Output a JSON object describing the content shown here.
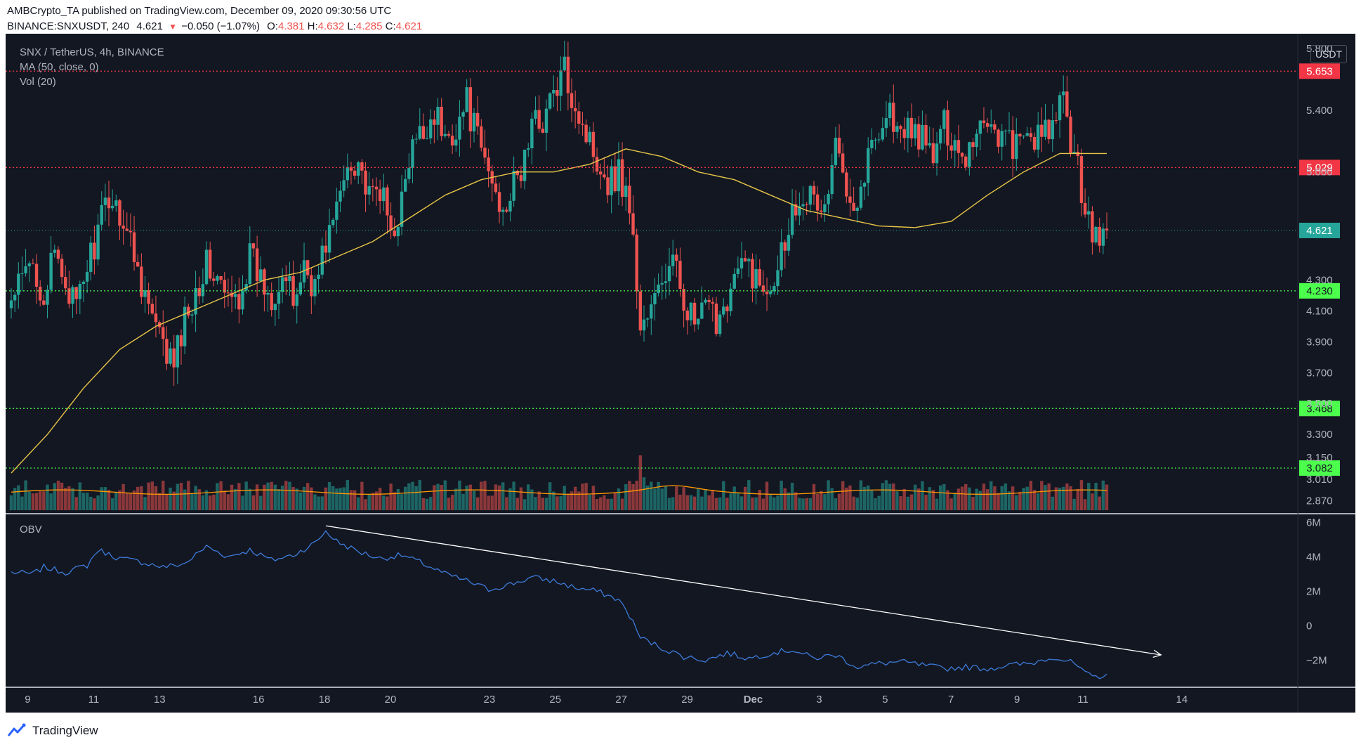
{
  "header": {
    "publisher": "AMBCrypto_TA published on TradingView.com, December 09, 2020 09:30:56 UTC",
    "symbol": "BINANCE:SNXUSDT, 240",
    "last": "4.621",
    "change": "−0.050 (−1.07%)",
    "o_label": "O:",
    "o_val": "4.381",
    "h_label": "H:",
    "h_val": "4.632",
    "l_label": "L:",
    "l_val": "4.285",
    "c_label": "C:",
    "c_val": "4.621"
  },
  "legend": {
    "pair": "SNX / TetherUS, 4h, BINANCE",
    "ma": "MA (50, close, 0)",
    "vol": "Vol (20)",
    "obv": "OBV"
  },
  "currency_button": "USDT",
  "footer": {
    "brand": "TradingView"
  },
  "colors": {
    "background": "#131722",
    "up": "#26a69a",
    "down": "#ef5350",
    "ma": "#e8c547",
    "vol_ma": "#ff9800",
    "obv": "#3d7bd9",
    "resistance": "#f23645",
    "support": "#4dff4d"
  },
  "chart_data": [
    {
      "type": "candlestick",
      "title": "SNX / TetherUS, 4h, BINANCE",
      "x_ticks": [
        "9",
        "11",
        "13",
        "16",
        "18",
        "20",
        "23",
        "25",
        "27",
        "29",
        "Dec",
        "3",
        "5",
        "7",
        "9",
        "11",
        "14"
      ],
      "y_ticks": [
        "5.800",
        "5.400",
        "5.000",
        "4.300",
        "4.100",
        "3.900",
        "3.700",
        "3.500",
        "3.300",
        "3.150",
        "3.010",
        "2.870"
      ],
      "ylim": [
        2.8,
        5.85
      ],
      "last_price": 4.621,
      "horizontal_levels": [
        {
          "value": 5.653,
          "label": "5.653",
          "kind": "resistance"
        },
        {
          "value": 5.029,
          "label": "5.029",
          "kind": "resistance"
        },
        {
          "value": 4.23,
          "label": "4.230",
          "kind": "support"
        },
        {
          "value": 3.468,
          "label": "3.468",
          "kind": "support"
        },
        {
          "value": 3.082,
          "label": "3.082",
          "kind": "support"
        }
      ],
      "close_path": [
        [
          0,
          4.15
        ],
        [
          3,
          4.3
        ],
        [
          6,
          4.4
        ],
        [
          9,
          4.2
        ],
        [
          12,
          4.45
        ],
        [
          15,
          4.3
        ],
        [
          18,
          4.1
        ],
        [
          21,
          4.4
        ],
        [
          24,
          4.6
        ],
        [
          27,
          4.85
        ],
        [
          30,
          4.75
        ],
        [
          33,
          4.55
        ],
        [
          36,
          4.3
        ],
        [
          39,
          4.05
        ],
        [
          42,
          3.85
        ],
        [
          45,
          3.75
        ],
        [
          48,
          4.05
        ],
        [
          51,
          4.25
        ],
        [
          54,
          4.4
        ],
        [
          57,
          4.3
        ],
        [
          60,
          4.15
        ],
        [
          63,
          4.2
        ],
        [
          66,
          4.45
        ],
        [
          69,
          4.3
        ],
        [
          72,
          4.2
        ],
        [
          75,
          4.35
        ],
        [
          78,
          4.15
        ],
        [
          81,
          4.4
        ],
        [
          84,
          4.25
        ],
        [
          87,
          4.55
        ],
        [
          90,
          4.75
        ],
        [
          93,
          5.05
        ],
        [
          96,
          5.1
        ],
        [
          99,
          4.8
        ],
        [
          102,
          4.9
        ],
        [
          105,
          4.6
        ],
        [
          108,
          4.8
        ],
        [
          111,
          5.15
        ],
        [
          114,
          5.25
        ],
        [
          117,
          5.4
        ],
        [
          120,
          5.2
        ],
        [
          123,
          5.3
        ],
        [
          126,
          5.45
        ],
        [
          129,
          5.2
        ],
        [
          132,
          5.0
        ],
        [
          135,
          4.8
        ],
        [
          138,
          4.85
        ],
        [
          141,
          5.0
        ],
        [
          144,
          5.3
        ],
        [
          147,
          5.35
        ],
        [
          150,
          5.5
        ],
        [
          153,
          5.65
        ],
        [
          156,
          5.45
        ],
        [
          159,
          5.25
        ],
        [
          162,
          5.1
        ],
        [
          165,
          4.95
        ],
        [
          168,
          5.0
        ],
        [
          171,
          4.8
        ],
        [
          174,
          4.0
        ],
        [
          177,
          4.1
        ],
        [
          180,
          4.3
        ],
        [
          183,
          4.4
        ],
        [
          186,
          4.2
        ],
        [
          189,
          4.0
        ],
        [
          192,
          4.1
        ],
        [
          195,
          4.05
        ],
        [
          198,
          4.2
        ],
        [
          201,
          4.35
        ],
        [
          204,
          4.4
        ],
        [
          207,
          4.25
        ],
        [
          210,
          4.3
        ],
        [
          213,
          4.5
        ],
        [
          216,
          4.75
        ],
        [
          219,
          4.9
        ],
        [
          222,
          4.8
        ],
        [
          225,
          4.75
        ],
        [
          228,
          5.15
        ],
        [
          231,
          4.95
        ],
        [
          234,
          4.8
        ],
        [
          237,
          5.1
        ],
        [
          240,
          5.3
        ],
        [
          243,
          5.4
        ],
        [
          246,
          5.2
        ],
        [
          249,
          5.3
        ],
        [
          252,
          5.2
        ],
        [
          255,
          5.1
        ],
        [
          258,
          5.3
        ],
        [
          261,
          5.2
        ],
        [
          264,
          5.1
        ],
        [
          267,
          5.3
        ],
        [
          270,
          5.35
        ],
        [
          273,
          5.25
        ],
        [
          276,
          5.2
        ],
        [
          279,
          5.15
        ],
        [
          282,
          5.25
        ],
        [
          285,
          5.2
        ],
        [
          288,
          5.3
        ],
        [
          291,
          5.45
        ],
        [
          294,
          5.1
        ],
        [
          297,
          4.8
        ],
        [
          300,
          4.55
        ],
        [
          303,
          4.621
        ]
      ],
      "series": [
        {
          "name": "MA (50, close, 0)",
          "path": [
            [
              0,
              3.05
            ],
            [
              10,
              3.3
            ],
            [
              20,
              3.6
            ],
            [
              30,
              3.85
            ],
            [
              40,
              4.0
            ],
            [
              50,
              4.1
            ],
            [
              60,
              4.2
            ],
            [
              70,
              4.3
            ],
            [
              80,
              4.35
            ],
            [
              90,
              4.45
            ],
            [
              100,
              4.55
            ],
            [
              110,
              4.7
            ],
            [
              120,
              4.85
            ],
            [
              130,
              4.95
            ],
            [
              140,
              5.0
            ],
            [
              150,
              5.0
            ],
            [
              160,
              5.05
            ],
            [
              170,
              5.15
            ],
            [
              180,
              5.1
            ],
            [
              190,
              5.0
            ],
            [
              200,
              4.95
            ],
            [
              210,
              4.85
            ],
            [
              220,
              4.75
            ],
            [
              230,
              4.7
            ],
            [
              240,
              4.65
            ],
            [
              250,
              4.64
            ],
            [
              260,
              4.68
            ],
            [
              270,
              4.85
            ],
            [
              280,
              5.0
            ],
            [
              290,
              5.12
            ],
            [
              303,
              5.12
            ]
          ]
        }
      ],
      "volume": {
        "name": "Vol (20)",
        "note": "relative volume 0-1 per candle index",
        "spikes": [
          [
            174,
            1.0
          ],
          [
            175,
            0.6
          ],
          [
            176,
            0.45
          ],
          [
            93,
            0.55
          ],
          [
            113,
            0.55
          ],
          [
            296,
            0.55
          ],
          [
            300,
            0.5
          ]
        ]
      }
    },
    {
      "type": "line",
      "title": "OBV",
      "y_ticks": [
        "6M",
        "4M",
        "2M",
        "0",
        "−2M"
      ],
      "ylim": [
        -3.5,
        6.3
      ],
      "series": [
        {
          "name": "OBV",
          "path": [
            [
              0,
              3.1
            ],
            [
              6,
              3.0
            ],
            [
              9,
              3.4
            ],
            [
              15,
              3.1
            ],
            [
              21,
              3.5
            ],
            [
              24,
              4.4
            ],
            [
              30,
              3.9
            ],
            [
              36,
              3.7
            ],
            [
              42,
              3.4
            ],
            [
              48,
              3.6
            ],
            [
              54,
              4.6
            ],
            [
              60,
              4.0
            ],
            [
              66,
              4.4
            ],
            [
              72,
              3.8
            ],
            [
              78,
              4.1
            ],
            [
              84,
              4.8
            ],
            [
              87,
              5.5
            ],
            [
              90,
              4.9
            ],
            [
              96,
              4.3
            ],
            [
              102,
              3.9
            ],
            [
              108,
              4.1
            ],
            [
              114,
              3.6
            ],
            [
              120,
              3.0
            ],
            [
              126,
              2.6
            ],
            [
              132,
              2.1
            ],
            [
              138,
              2.4
            ],
            [
              144,
              2.8
            ],
            [
              150,
              2.6
            ],
            [
              156,
              2.2
            ],
            [
              162,
              2.0
            ],
            [
              168,
              1.5
            ],
            [
              171,
              0.6
            ],
            [
              174,
              -0.7
            ],
            [
              180,
              -1.3
            ],
            [
              186,
              -1.8
            ],
            [
              192,
              -2.0
            ],
            [
              198,
              -1.6
            ],
            [
              204,
              -1.9
            ],
            [
              210,
              -1.6
            ],
            [
              216,
              -1.4
            ],
            [
              222,
              -1.9
            ],
            [
              228,
              -1.7
            ],
            [
              234,
              -2.4
            ],
            [
              240,
              -2.2
            ],
            [
              246,
              -2.1
            ],
            [
              252,
              -2.3
            ],
            [
              258,
              -2.5
            ],
            [
              264,
              -2.4
            ],
            [
              270,
              -2.5
            ],
            [
              276,
              -2.3
            ],
            [
              282,
              -2.2
            ],
            [
              288,
              -1.8
            ],
            [
              294,
              -2.2
            ],
            [
              297,
              -2.8
            ],
            [
              300,
              -3.0
            ],
            [
              303,
              -2.8
            ]
          ]
        }
      ],
      "annotations": [
        {
          "type": "trendline",
          "from": [
            87,
            5.8
          ],
          "to": [
            318,
            -1.7
          ]
        }
      ]
    }
  ]
}
